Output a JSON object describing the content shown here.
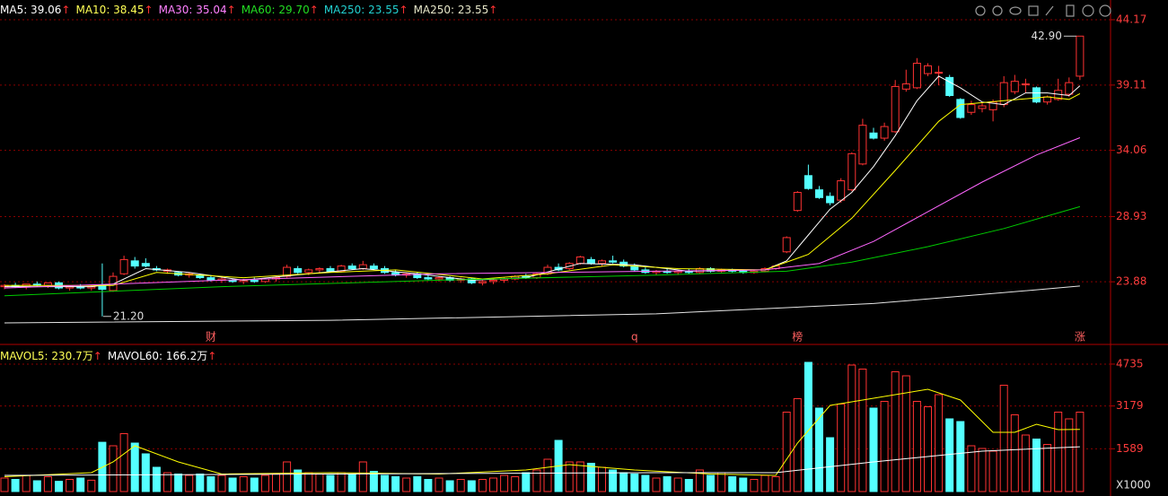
{
  "chart_data": [
    {
      "type": "candlestick",
      "legend": [
        {
          "text": "MA5: 39.06",
          "arrow": "↑",
          "color": "#ffffff"
        },
        {
          "text": "MA10: 38.45",
          "arrow": "↑",
          "color": "#ffff55"
        },
        {
          "text": "MA30: 35.04",
          "arrow": "↑",
          "color": "#ff80ff"
        },
        {
          "text": "MA60: 29.70",
          "arrow": "↑",
          "color": "#22dd22"
        },
        {
          "text": "MA250: 23.55",
          "arrow": "↑",
          "color": "#22d0d0"
        },
        {
          "text": "MA250: 23.55",
          "arrow": "↑",
          "color": "#e6e6c8"
        }
      ],
      "open": [
        23.5,
        23.6,
        23.5,
        23.7,
        23.6,
        23.8,
        23.4,
        23.5,
        23.4,
        23.6,
        23.2,
        24.5,
        25.5,
        25.3,
        24.9,
        24.7,
        24.6,
        24.4,
        24.4,
        24.2,
        24.0,
        24.0,
        23.9,
        24.0,
        23.9,
        24.1,
        24.3,
        24.9,
        24.6,
        24.8,
        24.9,
        24.7,
        25.1,
        24.9,
        25.1,
        24.9,
        24.6,
        24.4,
        24.5,
        24.2,
        24.1,
        24.2,
        24.0,
        24.1,
        23.8,
        23.9,
        24.0,
        24.1,
        24.3,
        24.2,
        24.5,
        25.0,
        24.9,
        25.3,
        25.6,
        25.3,
        25.5,
        25.4,
        25.1,
        24.8,
        24.6,
        24.7,
        24.6,
        24.7,
        24.6,
        24.9,
        24.7,
        24.8,
        24.7,
        24.6,
        24.7,
        24.9,
        26.2,
        29.4,
        32.1,
        31.0,
        30.5,
        30.2,
        31.0,
        33.0,
        35.4,
        35.0,
        35.5,
        38.8,
        38.9,
        40.0,
        40.1,
        39.7,
        38.0,
        37.0,
        37.3,
        37.2,
        37.6,
        38.6,
        39.2,
        38.9,
        37.8,
        38.0,
        38.4,
        39.8
      ],
      "high": [
        23.7,
        23.8,
        23.7,
        23.9,
        23.8,
        23.9,
        23.6,
        23.7,
        23.6,
        25.3,
        24.6,
        25.9,
        25.8,
        25.7,
        25.1,
        24.9,
        24.7,
        24.6,
        24.5,
        24.4,
        24.2,
        24.1,
        24.1,
        24.2,
        24.2,
        24.3,
        25.2,
        25.1,
        24.9,
        25.0,
        25.1,
        25.2,
        25.3,
        25.5,
        25.3,
        25.1,
        24.8,
        24.6,
        24.6,
        24.4,
        24.3,
        24.3,
        24.2,
        24.2,
        24.0,
        24.1,
        24.2,
        24.4,
        24.5,
        24.6,
        25.2,
        25.3,
        25.4,
        25.9,
        25.8,
        25.6,
        25.9,
        25.6,
        25.3,
        25.0,
        24.8,
        24.9,
        24.8,
        24.9,
        25.0,
        25.0,
        24.9,
        24.9,
        24.8,
        24.8,
        25.0,
        25.2,
        27.4,
        30.9,
        32.95,
        31.3,
        30.8,
        31.9,
        33.9,
        36.5,
        35.8,
        36.2,
        39.5,
        40.3,
        41.2,
        40.8,
        40.6,
        39.9,
        38.1,
        37.9,
        37.8,
        38.0,
        39.8,
        39.9,
        39.6,
        39.0,
        38.3,
        39.6,
        39.7,
        42.9
      ],
      "low": [
        23.3,
        23.4,
        23.3,
        23.5,
        23.4,
        23.3,
        23.2,
        23.3,
        23.2,
        21.2,
        23.1,
        24.4,
        24.9,
        25.0,
        24.7,
        24.5,
        24.3,
        24.2,
        24.1,
        23.9,
        23.8,
        23.8,
        23.7,
        23.8,
        23.8,
        23.9,
        24.2,
        24.5,
        24.4,
        24.6,
        24.6,
        24.6,
        24.8,
        24.8,
        24.8,
        24.5,
        24.3,
        24.2,
        24.1,
        24.0,
        23.9,
        23.9,
        23.8,
        23.7,
        23.6,
        23.7,
        23.8,
        24.0,
        24.1,
        24.1,
        24.4,
        24.7,
        24.8,
        25.2,
        25.2,
        25.1,
        25.3,
        25.0,
        24.7,
        24.5,
        24.4,
        24.5,
        24.4,
        24.5,
        24.5,
        24.6,
        24.6,
        24.6,
        24.5,
        24.5,
        24.6,
        24.8,
        26.1,
        29.3,
        31.0,
        30.3,
        29.8,
        30.0,
        30.9,
        32.9,
        34.9,
        34.8,
        35.4,
        38.6,
        38.8,
        39.8,
        39.1,
        38.2,
        36.5,
        36.8,
        37.0,
        36.3,
        37.4,
        38.4,
        38.5,
        37.7,
        37.6,
        37.9,
        38.2,
        39.5
      ],
      "close": [
        23.6,
        23.5,
        23.7,
        23.6,
        23.8,
        23.4,
        23.5,
        23.4,
        23.5,
        23.3,
        24.3,
        25.6,
        25.1,
        25.1,
        24.8,
        24.8,
        24.4,
        24.5,
        24.2,
        24.0,
        24.1,
        23.9,
        24.0,
        23.9,
        24.1,
        24.2,
        25.0,
        24.6,
        24.8,
        24.9,
        24.7,
        25.1,
        24.9,
        25.2,
        24.9,
        24.6,
        24.4,
        24.5,
        24.2,
        24.1,
        24.2,
        24.0,
        24.1,
        23.8,
        23.9,
        24.0,
        24.1,
        24.3,
        24.2,
        24.5,
        25.0,
        24.8,
        25.3,
        25.8,
        25.3,
        25.5,
        25.4,
        25.1,
        24.8,
        24.6,
        24.7,
        24.6,
        24.7,
        24.6,
        24.9,
        24.7,
        24.8,
        24.7,
        24.6,
        24.7,
        24.9,
        25.1,
        27.3,
        30.8,
        31.1,
        30.4,
        30.0,
        31.7,
        33.8,
        36.0,
        35.0,
        35.9,
        39.0,
        39.2,
        40.8,
        40.6,
        40.1,
        38.3,
        36.6,
        37.6,
        37.5,
        37.8,
        39.3,
        39.4,
        39.2,
        37.8,
        38.2,
        38.7,
        39.3,
        42.9
      ],
      "up_color": "#ff3232",
      "down_color": "#54ffff",
      "ylim": [
        19.1,
        45.35
      ],
      "yticks": [
        23.88,
        28.93,
        34.06,
        39.11,
        44.17
      ],
      "grid": true,
      "lines": [
        {
          "color": "#ffffff",
          "x": [
            0,
            8,
            10,
            13,
            17,
            22,
            28,
            33,
            38,
            43,
            48,
            53,
            58,
            63,
            70,
            72,
            74,
            76,
            78,
            80,
            82,
            84,
            86,
            88,
            90,
            92,
            94,
            96,
            98,
            99
          ],
          "values": [
            23.5,
            23.5,
            23.7,
            24.9,
            24.6,
            24.0,
            24.5,
            24.9,
            24.5,
            24.0,
            24.2,
            25.3,
            25.2,
            24.7,
            24.8,
            25.5,
            27.5,
            29.5,
            30.8,
            32.8,
            35.2,
            37.9,
            39.8,
            38.9,
            37.8,
            37.6,
            38.5,
            38.5,
            38.3,
            39.06
          ]
        },
        {
          "color": "#ffff00",
          "x": [
            0,
            10,
            14,
            22,
            30,
            36,
            44,
            50,
            56,
            62,
            70,
            74,
            78,
            82,
            86,
            88,
            92,
            96,
            98,
            99
          ],
          "values": [
            23.6,
            23.6,
            24.6,
            24.2,
            24.6,
            24.8,
            24.1,
            24.5,
            25.2,
            24.9,
            24.8,
            26.0,
            28.8,
            32.5,
            36.3,
            37.6,
            37.9,
            38.2,
            38.0,
            38.45
          ]
        },
        {
          "color": "#ff66ff",
          "x": [
            0,
            20,
            40,
            60,
            70,
            75,
            80,
            85,
            90,
            95,
            99
          ],
          "values": [
            23.4,
            24.0,
            24.5,
            24.7,
            24.8,
            25.3,
            27.0,
            29.3,
            31.6,
            33.7,
            35.04
          ]
        },
        {
          "color": "#00cc00",
          "x": [
            0,
            20,
            40,
            60,
            72,
            78,
            85,
            92,
            99
          ],
          "values": [
            22.8,
            23.5,
            24.0,
            24.4,
            24.7,
            25.4,
            26.6,
            28.0,
            29.7
          ]
        },
        {
          "color": "#e6e6e6",
          "x": [
            0,
            30,
            60,
            80,
            90,
            99
          ],
          "values": [
            20.7,
            20.9,
            21.4,
            22.2,
            22.9,
            23.55
          ]
        }
      ],
      "annotations": [
        {
          "index": 99,
          "value": 42.9,
          "label": "42.90"
        },
        {
          "index": 9,
          "value": 21.2,
          "label": "21.20"
        }
      ],
      "events": [
        {
          "index": 19,
          "label": "财"
        },
        {
          "index": 58,
          "label": "q"
        },
        {
          "index": 73,
          "label": "榜"
        },
        {
          "index": 99,
          "label": "涨"
        }
      ]
    },
    {
      "type": "volume",
      "legend": [
        {
          "text": "MAVOL5: 230.7万",
          "arrow": "↑",
          "color": "#ffff55"
        },
        {
          "text": "MAVOL60: 166.2万",
          "arrow": "↑",
          "color": "#ffffff"
        }
      ],
      "values": [
        500,
        450,
        600,
        400,
        550,
        380,
        450,
        500,
        420,
        1830,
        1700,
        2150,
        1800,
        1400,
        900,
        700,
        650,
        600,
        650,
        550,
        600,
        500,
        550,
        500,
        600,
        650,
        1100,
        800,
        700,
        650,
        600,
        700,
        650,
        1100,
        750,
        600,
        550,
        500,
        550,
        450,
        500,
        400,
        450,
        400,
        450,
        500,
        600,
        550,
        700,
        800,
        1200,
        1900,
        1100,
        1100,
        1050,
        900,
        800,
        700,
        650,
        600,
        500,
        550,
        500,
        450,
        800,
        600,
        700,
        550,
        500,
        450,
        600,
        550,
        2950,
        3450,
        4800,
        3100,
        2000,
        3250,
        4700,
        4550,
        3100,
        3350,
        4450,
        4300,
        3350,
        3150,
        3600,
        2700,
        2600,
        1700,
        1600,
        1500,
        3950,
        2850,
        2100,
        1950,
        1750,
        2950,
        2700,
        2950
      ],
      "up_color": "#ff3232",
      "down_color": "#54ffff",
      "ylim": [
        0,
        5400
      ],
      "yticks": [
        1589,
        3179,
        4735
      ],
      "grid": true,
      "unit_label": "X1000",
      "lines": [
        {
          "color": "#ffff00",
          "x": [
            0,
            8,
            10,
            12,
            16,
            20,
            30,
            40,
            48,
            52,
            58,
            65,
            71,
            73,
            76,
            79,
            82,
            85,
            88,
            91,
            93,
            95,
            97,
            99
          ],
          "values": [
            550,
            700,
            1100,
            1700,
            1100,
            650,
            700,
            650,
            800,
            1000,
            800,
            650,
            600,
            1800,
            3200,
            3400,
            3600,
            3800,
            3400,
            2200,
            2200,
            2500,
            2300,
            2307
          ]
        },
        {
          "color": "#ffffff",
          "x": [
            0,
            30,
            60,
            71,
            80,
            90,
            99
          ],
          "values": [
            600,
            650,
            700,
            700,
            1100,
            1500,
            1662
          ]
        }
      ]
    }
  ]
}
